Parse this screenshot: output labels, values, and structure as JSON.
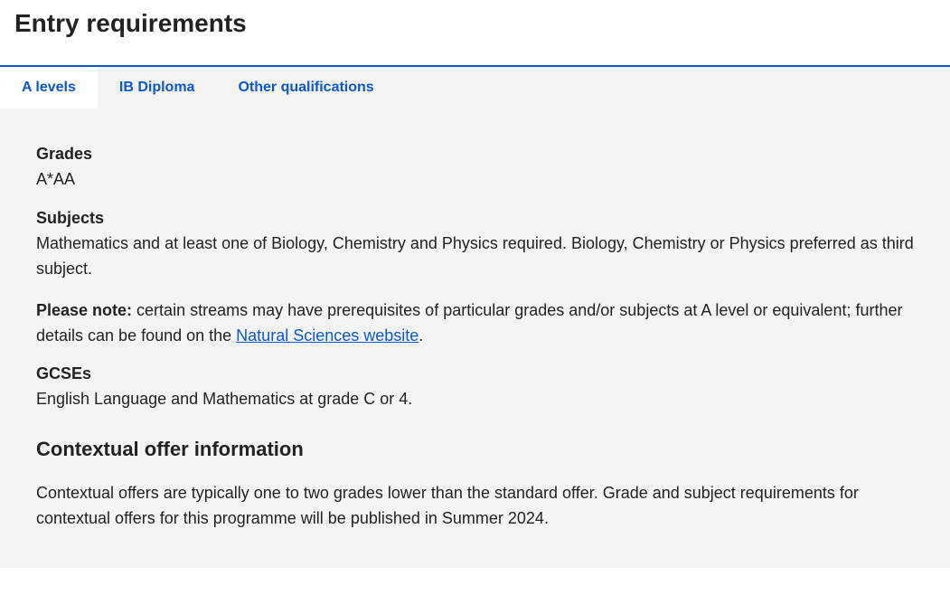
{
  "heading": "Entry requirements",
  "tabs": {
    "items": [
      {
        "label": "A levels",
        "active": true
      },
      {
        "label": "IB Diploma",
        "active": false
      },
      {
        "label": "Other qualifications",
        "active": false
      }
    ]
  },
  "panel": {
    "grades": {
      "label": "Grades",
      "value": "A*AA"
    },
    "subjects": {
      "label": "Subjects",
      "value": "Mathematics and at least one of Biology, Chemistry and Physics required. Biology, Chemistry or Physics preferred as third subject."
    },
    "note": {
      "prefix": "Please note:",
      "text_before_link": " certain streams may have prerequisites of particular grades and/or subjects at A level or equivalent; further details can be found on the ",
      "link_text": "Natural Sciences website",
      "text_after_link": "."
    },
    "gcses": {
      "label": "GCSEs",
      "value": "English Language and Mathematics at grade C or 4."
    },
    "contextual": {
      "heading": "Contextual offer information",
      "body": "Contextual offers are typically one to two grades lower than the standard offer. Grade and subject requirements for contextual offers for this programme will be published in Summer 2024."
    }
  }
}
